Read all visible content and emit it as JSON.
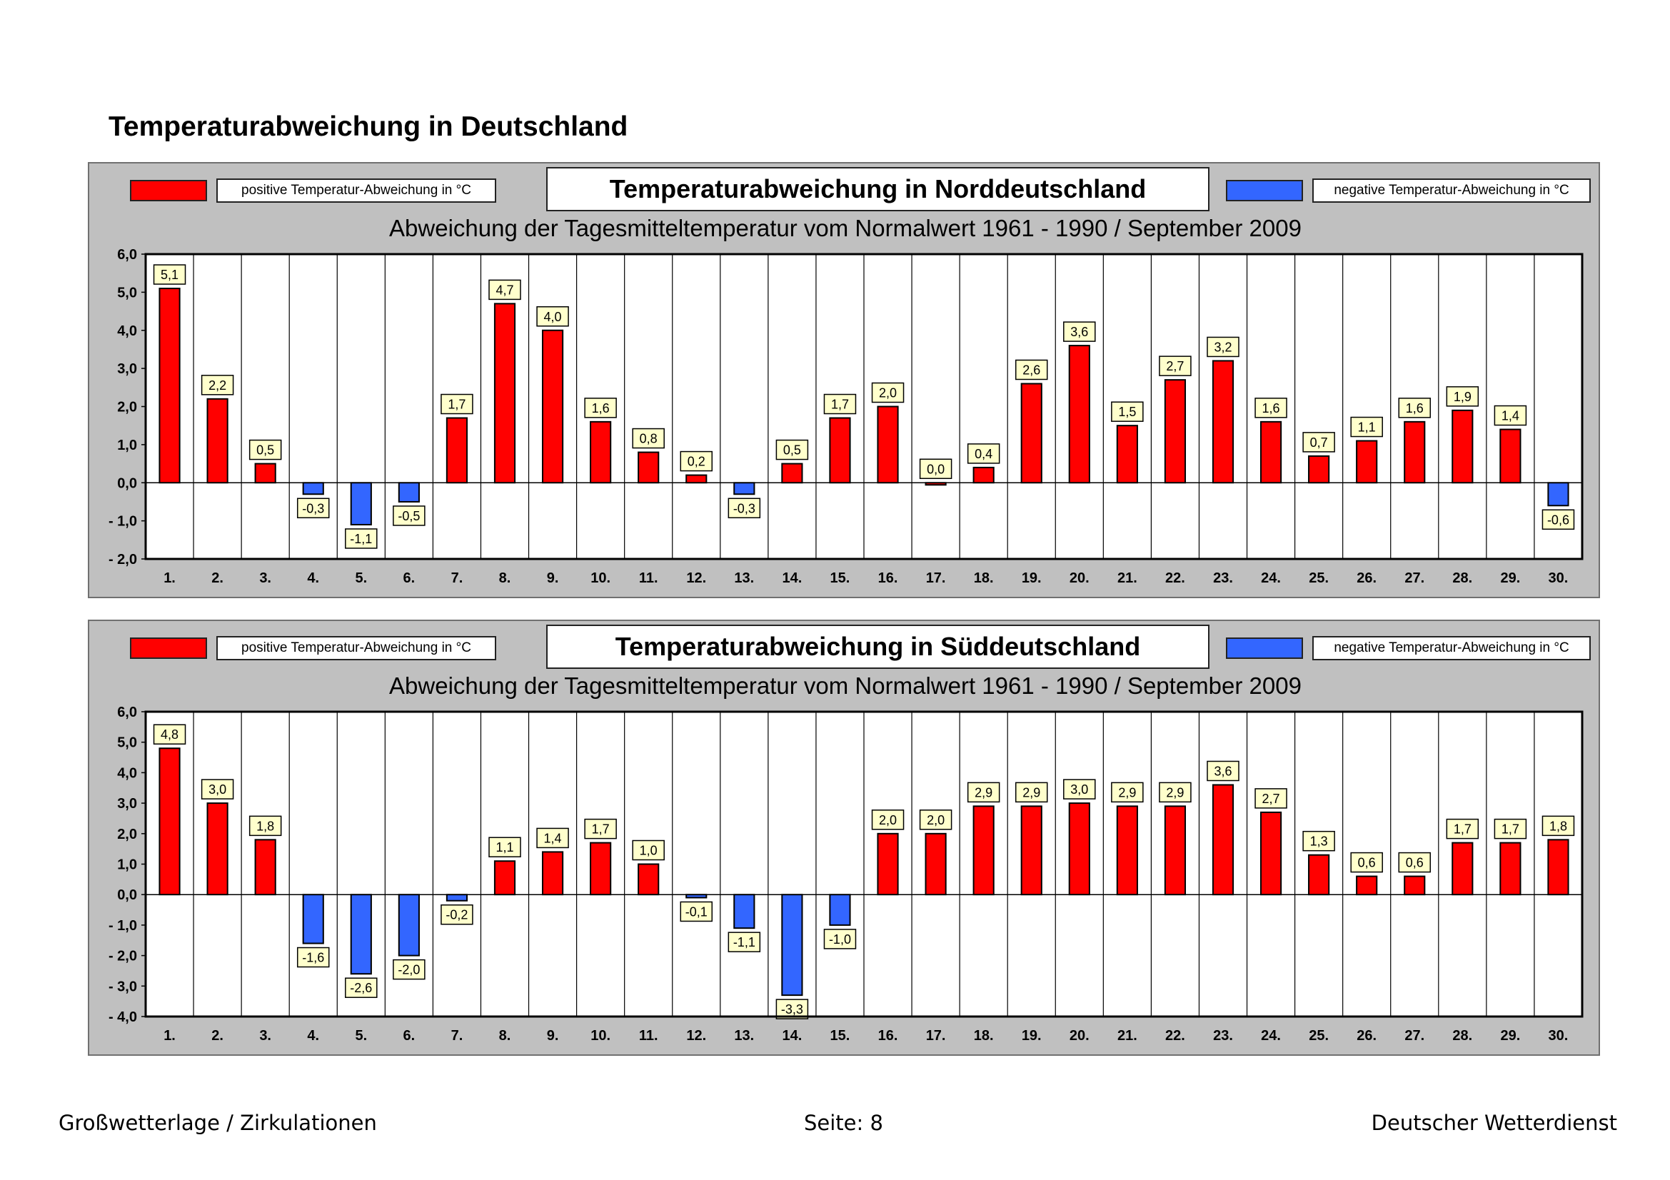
{
  "page": {
    "title": "Temperaturabweichung in Deutschland",
    "footer_left": "Großwetterlage / Zirkulationen",
    "footer_center": "Seite: 8",
    "footer_right": "Deutscher Wetterdienst"
  },
  "colors": {
    "positive": "#ff0000",
    "negative": "#3366ff",
    "panel_bg": "#c0c0c0",
    "label_bg": "#ffffcc"
  },
  "chart_data": [
    {
      "type": "bar",
      "title": "Temperaturabweichung in Norddeutschland",
      "subtitle": "Abweichung der Tagesmitteltemperatur vom Normalwert 1961 - 1990  /  September 2009",
      "legend_positive": "positive Temperatur-Abweichung in °C",
      "legend_negative": "negative Temperatur-Abweichung in °C",
      "categories": [
        "1.",
        "2.",
        "3.",
        "4.",
        "5.",
        "6.",
        "7.",
        "8.",
        "9.",
        "10.",
        "11.",
        "12.",
        "13.",
        "14.",
        "15.",
        "16.",
        "17.",
        "18.",
        "19.",
        "20.",
        "21.",
        "22.",
        "23.",
        "24.",
        "25.",
        "26.",
        "27.",
        "28.",
        "29.",
        "30."
      ],
      "values": [
        5.1,
        2.2,
        0.5,
        -0.3,
        -1.1,
        -0.5,
        1.7,
        4.7,
        4.0,
        1.6,
        0.8,
        0.2,
        -0.3,
        0.5,
        1.7,
        2.0,
        0.0,
        0.4,
        2.6,
        3.6,
        1.5,
        2.7,
        3.2,
        1.6,
        0.7,
        1.1,
        1.6,
        1.9,
        1.4,
        -0.6
      ],
      "value_labels": [
        "5,1",
        "2,2",
        "0,5",
        "-0,3",
        "-1,1",
        "-0,5",
        "1,7",
        "4,7",
        "4,0",
        "1,6",
        "0,8",
        "0,2",
        "-0,3",
        "0,5",
        "1,7",
        "2,0",
        "0,0",
        "0,4",
        "2,6",
        "3,6",
        "1,5",
        "2,7",
        "3,2",
        "1,6",
        "0,7",
        "1,1",
        "1,6",
        "1,9",
        "1,4",
        "-0,6"
      ],
      "ylim": [
        -2,
        6
      ],
      "yticks": [
        6,
        5,
        4,
        3,
        2,
        1,
        0,
        -1,
        -2
      ],
      "ytick_labels": [
        "6,0",
        "5,0",
        "4,0",
        "3,0",
        "2,0",
        "1,0",
        "0,0",
        "- 1,0",
        "- 2,0"
      ]
    },
    {
      "type": "bar",
      "title": "Temperaturabweichung in Süddeutschland",
      "subtitle": "Abweichung der Tagesmitteltemperatur vom Normalwert 1961 - 1990  /  September 2009",
      "legend_positive": "positive Temperatur-Abweichung in °C",
      "legend_negative": "negative Temperatur-Abweichung in °C",
      "categories": [
        "1.",
        "2.",
        "3.",
        "4.",
        "5.",
        "6.",
        "7.",
        "8.",
        "9.",
        "10.",
        "11.",
        "12.",
        "13.",
        "14.",
        "15.",
        "16.",
        "17.",
        "18.",
        "19.",
        "20.",
        "21.",
        "22.",
        "23.",
        "24.",
        "25.",
        "26.",
        "27.",
        "28.",
        "29.",
        "30."
      ],
      "values": [
        4.8,
        3.0,
        1.8,
        -1.6,
        -2.6,
        -2.0,
        -0.2,
        1.1,
        1.4,
        1.7,
        1.0,
        -0.1,
        -1.1,
        -3.3,
        -1.0,
        2.0,
        2.0,
        2.9,
        2.9,
        3.0,
        2.9,
        2.9,
        3.6,
        2.7,
        1.3,
        0.6,
        0.6,
        1.7,
        1.7,
        1.8
      ],
      "value_labels": [
        "4,8",
        "3,0",
        "1,8",
        "-1,6",
        "-2,6",
        "-2,0",
        "-0,2",
        "1,1",
        "1,4",
        "1,7",
        "1,0",
        "-0,1",
        "-1,1",
        "-3,3",
        "-1,0",
        "2,0",
        "2,0",
        "2,9",
        "2,9",
        "3,0",
        "2,9",
        "2,9",
        "3,6",
        "2,7",
        "1,3",
        "0,6",
        "0,6",
        "1,7",
        "1,7",
        "1,8"
      ],
      "ylim": [
        -4,
        6
      ],
      "yticks": [
        6,
        5,
        4,
        3,
        2,
        1,
        0,
        -1,
        -2,
        -3,
        -4
      ],
      "ytick_labels": [
        "6,0",
        "5,0",
        "4,0",
        "3,0",
        "2,0",
        "1,0",
        "0,0",
        "- 1,0",
        "- 2,0",
        "- 3,0",
        "- 4,0"
      ]
    }
  ]
}
